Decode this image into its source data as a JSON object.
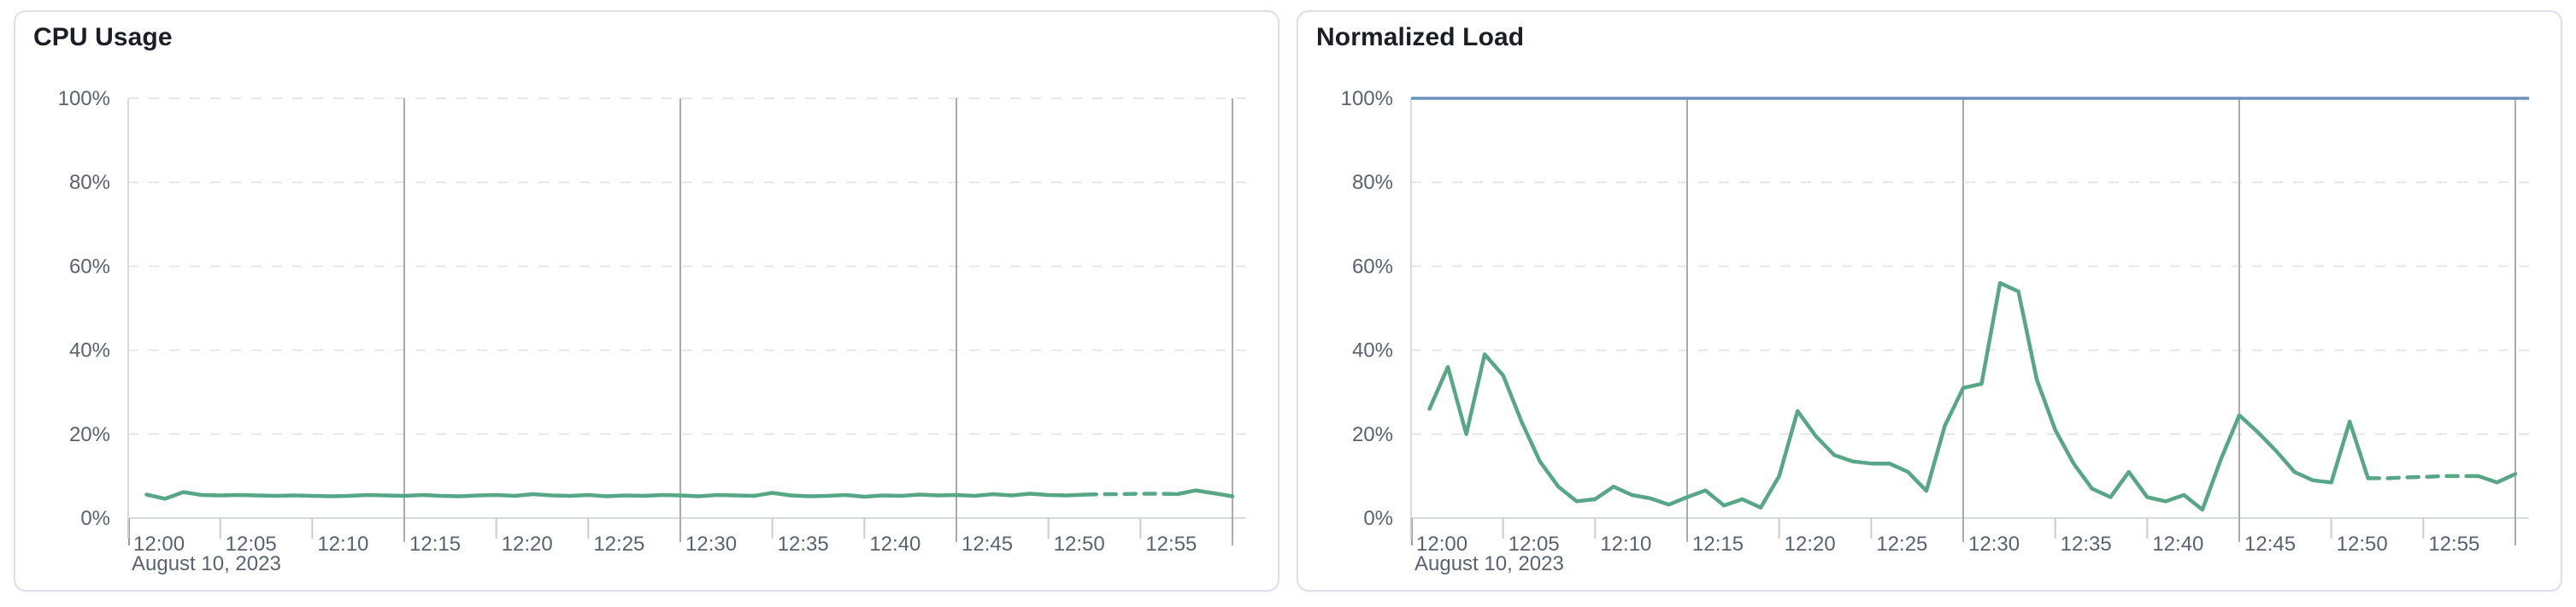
{
  "page": {
    "background_color": "#ffffff",
    "card_background": "#ffffff",
    "card_border_color": "#dadfeb"
  },
  "colors": {
    "series_green": "#57a786",
    "threshold_blue": "#6992bd",
    "grid_dashed": "#e4e6ed",
    "grid_major_vertical": "#ababaf",
    "axis_line": "#d7dae0",
    "tick_minor": "#c9ccd2",
    "tick_edge": "#9aa0a8",
    "axis_label": "#5a6270",
    "title_text": "#1b1e24"
  },
  "chart_data": [
    {
      "type": "line",
      "title": "CPU Usage",
      "x_axis_date_label": "August 10, 2023",
      "x_start": "12:00",
      "x_interval_minutes": 1,
      "x_tick_labels": [
        "12:00",
        "12:05",
        "12:10",
        "12:15",
        "12:20",
        "12:25",
        "12:30",
        "12:35",
        "12:40",
        "12:45",
        "12:50",
        "12:55"
      ],
      "y_tick_labels": [
        "0%",
        "20%",
        "40%",
        "60%",
        "80%",
        "100%"
      ],
      "ylim": [
        0,
        100
      ],
      "grid": "horizontal-dashed, vertical-solid-at-15min",
      "legend": "none",
      "series": [
        {
          "name": "cpu-usage-percent",
          "color": "#57a786",
          "dashed_segment_indices": [
            51,
            56
          ],
          "values": [
            5.6,
            4.6,
            6.2,
            5.5,
            5.4,
            5.5,
            5.4,
            5.3,
            5.4,
            5.3,
            5.2,
            5.3,
            5.5,
            5.4,
            5.3,
            5.5,
            5.3,
            5.2,
            5.4,
            5.5,
            5.3,
            5.7,
            5.4,
            5.3,
            5.5,
            5.2,
            5.4,
            5.3,
            5.5,
            5.4,
            5.2,
            5.5,
            5.4,
            5.3,
            6.0,
            5.4,
            5.2,
            5.3,
            5.5,
            5.1,
            5.4,
            5.3,
            5.6,
            5.4,
            5.5,
            5.3,
            5.7,
            5.4,
            5.8,
            5.5,
            5.4,
            5.6,
            5.7,
            5.7,
            5.8,
            5.8,
            5.7,
            6.6,
            5.9,
            5.2
          ]
        }
      ],
      "threshold_line": null
    },
    {
      "type": "line",
      "title": "Normalized Load",
      "x_axis_date_label": "August 10, 2023",
      "x_start": "12:00",
      "x_interval_minutes": 1,
      "x_tick_labels": [
        "12:00",
        "12:05",
        "12:10",
        "12:15",
        "12:20",
        "12:25",
        "12:30",
        "12:35",
        "12:40",
        "12:45",
        "12:50",
        "12:55"
      ],
      "y_tick_labels": [
        "0%",
        "20%",
        "40%",
        "60%",
        "80%",
        "100%"
      ],
      "ylim": [
        0,
        100
      ],
      "grid": "horizontal-dashed, vertical-solid-at-15min",
      "legend": "none",
      "series": [
        {
          "name": "normalized-load-percent",
          "color": "#57a786",
          "dashed_segment_indices": [
            51,
            57
          ],
          "values": [
            26,
            36,
            20,
            39,
            34,
            23,
            13.5,
            7.5,
            4,
            4.5,
            7.5,
            5.5,
            4.7,
            3.2,
            5,
            6.6,
            3,
            4.5,
            2.5,
            10,
            25.5,
            19.5,
            15,
            13.5,
            13,
            13,
            11,
            6.5,
            22,
            31,
            32,
            56,
            54,
            33,
            21,
            13,
            7,
            5,
            11,
            5,
            4,
            5.5,
            2,
            14,
            24.5,
            20.5,
            16,
            11,
            9,
            8.5,
            23,
            9.5,
            9.5,
            9.7,
            9.8,
            10,
            10,
            10,
            8.5,
            10.5
          ]
        }
      ],
      "threshold_line": {
        "name": "load-limit",
        "value": 100,
        "color": "#6992bd"
      }
    }
  ]
}
